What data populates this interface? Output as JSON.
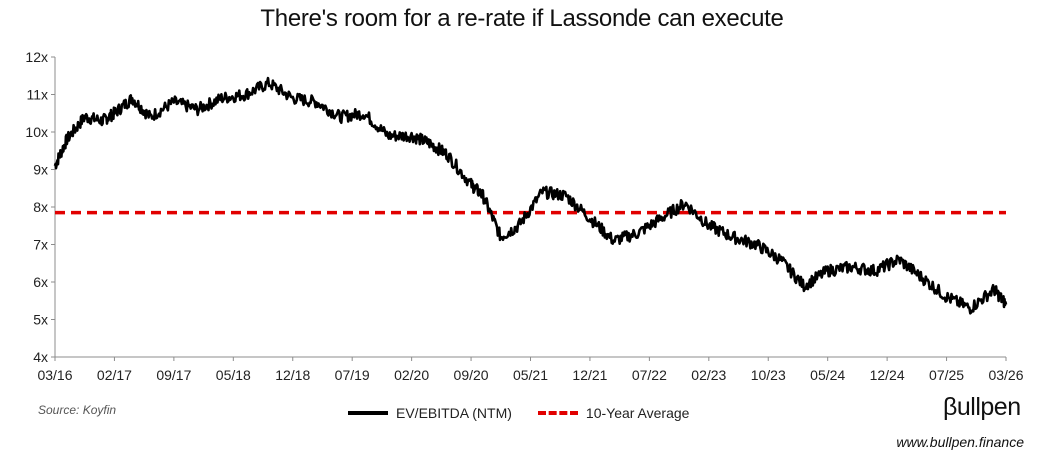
{
  "chart_data": {
    "type": "line",
    "title": "There's room for a re-rate if Lassonde can execute",
    "xlabel": "",
    "ylabel": "",
    "ylim": [
      4,
      12
    ],
    "y_ticks": [
      "4x",
      "5x",
      "6x",
      "7x",
      "8x",
      "9x",
      "10x",
      "11x",
      "12x"
    ],
    "x_ticks": [
      "03/16",
      "02/17",
      "09/17",
      "05/18",
      "12/18",
      "07/19",
      "02/20",
      "09/20",
      "05/21",
      "12/21",
      "07/22",
      "02/23",
      "10/23",
      "05/24",
      "12/24",
      "07/25",
      "03/26"
    ],
    "grid": false,
    "series": [
      {
        "name": "EV/EBITDA (NTM)",
        "color": "#000000",
        "style": "solid",
        "x": [
          0,
          0.2,
          0.5,
          0.8,
          1.0,
          1.3,
          1.6,
          2.0,
          2.4,
          2.8,
          3.2,
          3.6,
          4.0,
          4.4,
          4.8,
          5.2,
          5.6,
          6.0,
          6.3,
          6.6,
          7.0,
          7.2,
          7.5,
          7.8,
          8.2,
          8.6,
          9.0,
          9.4,
          9.8,
          10.2,
          10.6,
          11.0,
          11.4,
          11.8,
          12.2,
          12.6,
          13.0,
          13.4,
          13.8,
          14.2,
          14.6,
          15.0,
          15.4,
          15.8,
          16.0
        ],
        "values": [
          9.1,
          9.8,
          10.4,
          10.3,
          10.5,
          10.9,
          10.4,
          10.8,
          10.6,
          10.9,
          11.0,
          11.3,
          10.9,
          10.8,
          10.4,
          10.5,
          9.9,
          9.9,
          9.7,
          9.4,
          8.6,
          8.3,
          7.2,
          7.5,
          8.4,
          8.3,
          7.7,
          7.1,
          7.3,
          7.7,
          8.1,
          7.5,
          7.2,
          7.0,
          6.6,
          5.9,
          6.3,
          6.4,
          6.3,
          6.6,
          6.1,
          5.6,
          5.3,
          5.8,
          5.4
        ]
      },
      {
        "name": "10-Year Average",
        "color": "#e10000",
        "style": "dashed",
        "value": 7.85
      }
    ]
  },
  "source": "Source: Koyfin",
  "brand": "βullpen",
  "url": "www.bullpen.finance"
}
